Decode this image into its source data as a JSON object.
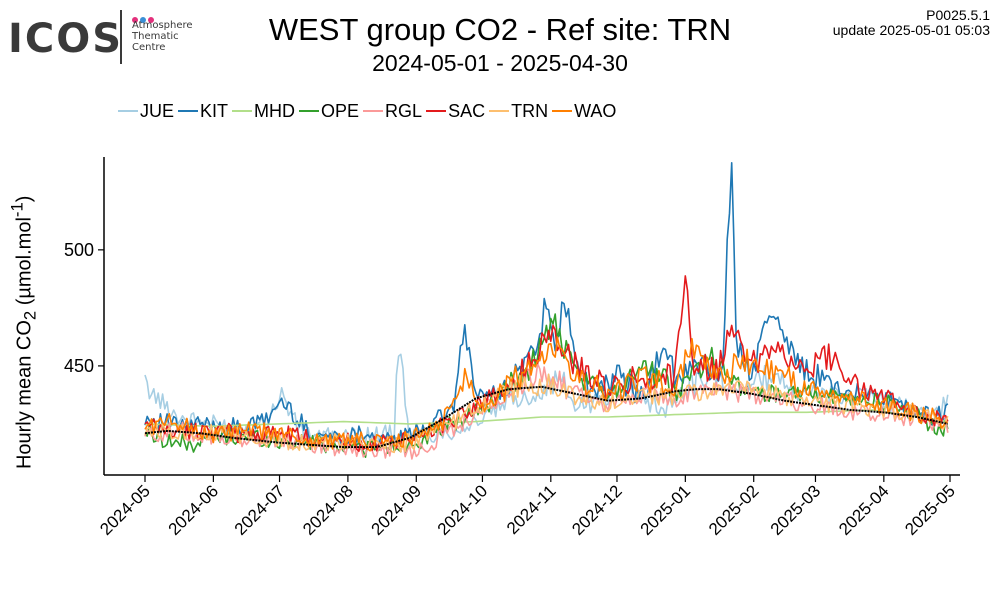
{
  "logo": {
    "word": "ICOS",
    "line1": "Atmosphere",
    "line2": "Thematic",
    "line3": "Centre",
    "dot_colors": [
      "#e4307c",
      "#3a8fd6",
      "#e4307c"
    ]
  },
  "header": {
    "title": "WEST group CO2 - Ref site: TRN",
    "subtitle": "2024-05-01 - 2025-04-30",
    "version": "P0025.5.1",
    "update": "update  2025-05-01 05:03"
  },
  "axis": {
    "ylabel_main": "Hourly mean  CO",
    "ylabel_sub": "2",
    "ylabel_unit": " (µmol.mol",
    "ylabel_sup": "-1",
    "ylabel_close": ")"
  },
  "chart_data": {
    "type": "line",
    "title": "WEST group CO2 - Ref site: TRN",
    "subtitle": "2024-05-01 - 2025-04-30",
    "xlabel": "",
    "ylabel": "Hourly mean  CO2 (µmol.mol-1)",
    "ylim": [
      403,
      540
    ],
    "yticks": [
      450,
      500
    ],
    "xlim": [
      "2024-05-01",
      "2025-04-30"
    ],
    "xticks": [
      "2024-05",
      "2024-06",
      "2024-07",
      "2024-08",
      "2024-09",
      "2024-10",
      "2024-11",
      "2024-12",
      "2025-01",
      "2025-02",
      "2025-03",
      "2025-04",
      "2025-05"
    ],
    "grid": false,
    "legend_position": "top",
    "series": [
      {
        "name": "JUE",
        "color": "#a6cee3",
        "values": [
          [
            0,
            441
          ],
          [
            15,
            428
          ],
          [
            30,
            425
          ],
          [
            45,
            423
          ],
          [
            55,
            426
          ],
          [
            62,
            438
          ],
          [
            70,
            422
          ],
          [
            85,
            419
          ],
          [
            100,
            420
          ],
          [
            113,
            421
          ],
          [
            115,
            460
          ],
          [
            120,
            419
          ],
          [
            140,
            422
          ],
          [
            155,
            428
          ],
          [
            165,
            435
          ],
          [
            175,
            437
          ],
          [
            182,
            440
          ],
          [
            188,
            445
          ],
          [
            195,
            433
          ],
          [
            205,
            434
          ],
          [
            220,
            443
          ],
          [
            227,
            435
          ],
          [
            235,
            431
          ],
          [
            245,
            440
          ],
          [
            258,
            446
          ],
          [
            265,
            445
          ],
          [
            272,
            440
          ],
          [
            285,
            447
          ],
          [
            300,
            438
          ],
          [
            315,
            437
          ],
          [
            330,
            436
          ],
          [
            345,
            432
          ],
          [
            358,
            430
          ],
          [
            364,
            434
          ]
        ]
      },
      {
        "name": "KIT",
        "color": "#1f78b4",
        "values": [
          [
            0,
            428
          ],
          [
            15,
            424
          ],
          [
            30,
            425
          ],
          [
            45,
            423
          ],
          [
            55,
            427
          ],
          [
            62,
            435
          ],
          [
            75,
            421
          ],
          [
            90,
            419
          ],
          [
            100,
            422
          ],
          [
            108,
            417
          ],
          [
            120,
            420
          ],
          [
            135,
            428
          ],
          [
            140,
            433
          ],
          [
            145,
            466
          ],
          [
            150,
            438
          ],
          [
            160,
            438
          ],
          [
            170,
            448
          ],
          [
            178,
            460
          ],
          [
            182,
            480
          ],
          [
            186,
            452
          ],
          [
            190,
            480
          ],
          [
            195,
            452
          ],
          [
            203,
            438
          ],
          [
            215,
            445
          ],
          [
            225,
            438
          ],
          [
            232,
            450
          ],
          [
            236,
            460
          ],
          [
            240,
            445
          ],
          [
            250,
            450
          ],
          [
            262,
            447
          ],
          [
            264,
            500
          ],
          [
            266,
            536
          ],
          [
            268,
            460
          ],
          [
            275,
            448
          ],
          [
            285,
            475
          ],
          [
            295,
            452
          ],
          [
            305,
            445
          ],
          [
            318,
            440
          ],
          [
            330,
            438
          ],
          [
            345,
            432
          ],
          [
            358,
            428
          ],
          [
            364,
            431
          ]
        ]
      },
      {
        "name": "MHD",
        "color": "#b2df8a",
        "values": [
          [
            0,
            425
          ],
          [
            30,
            424
          ],
          [
            60,
            425
          ],
          [
            90,
            426
          ],
          [
            120,
            425
          ],
          [
            150,
            426
          ],
          [
            180,
            428
          ],
          [
            210,
            428
          ],
          [
            240,
            429
          ],
          [
            270,
            430
          ],
          [
            300,
            430
          ],
          [
            330,
            431
          ],
          [
            364,
            426
          ]
        ]
      },
      {
        "name": "OPE",
        "color": "#33a02c",
        "values": [
          [
            0,
            422
          ],
          [
            10,
            418
          ],
          [
            20,
            416
          ],
          [
            30,
            419
          ],
          [
            45,
            420
          ],
          [
            60,
            418
          ],
          [
            75,
            417
          ],
          [
            90,
            416
          ],
          [
            105,
            414
          ],
          [
            120,
            416
          ],
          [
            140,
            425
          ],
          [
            160,
            436
          ],
          [
            175,
            450
          ],
          [
            185,
            470
          ],
          [
            195,
            445
          ],
          [
            210,
            438
          ],
          [
            225,
            450
          ],
          [
            240,
            440
          ],
          [
            258,
            455
          ],
          [
            270,
            440
          ],
          [
            285,
            438
          ],
          [
            300,
            438
          ],
          [
            315,
            436
          ],
          [
            330,
            435
          ],
          [
            345,
            432
          ],
          [
            360,
            422
          ],
          [
            364,
            424
          ]
        ]
      },
      {
        "name": "RGL",
        "color": "#fb9a99",
        "values": [
          [
            0,
            420
          ],
          [
            15,
            422
          ],
          [
            30,
            420
          ],
          [
            45,
            418
          ],
          [
            60,
            419
          ],
          [
            75,
            416
          ],
          [
            90,
            415
          ],
          [
            105,
            413
          ],
          [
            115,
            416
          ],
          [
            120,
            412
          ],
          [
            135,
            420
          ],
          [
            150,
            430
          ],
          [
            165,
            437
          ],
          [
            180,
            447
          ],
          [
            195,
            440
          ],
          [
            210,
            432
          ],
          [
            225,
            438
          ],
          [
            240,
            436
          ],
          [
            255,
            440
          ],
          [
            270,
            438
          ],
          [
            285,
            436
          ],
          [
            300,
            434
          ],
          [
            315,
            431
          ],
          [
            330,
            430
          ],
          [
            345,
            428
          ],
          [
            364,
            425
          ]
        ]
      },
      {
        "name": "SAC",
        "color": "#e31a1c",
        "values": [
          [
            0,
            424
          ],
          [
            15,
            421
          ],
          [
            30,
            423
          ],
          [
            45,
            420
          ],
          [
            60,
            421
          ],
          [
            75,
            419
          ],
          [
            90,
            418
          ],
          [
            105,
            416
          ],
          [
            120,
            418
          ],
          [
            135,
            425
          ],
          [
            150,
            433
          ],
          [
            165,
            440
          ],
          [
            175,
            453
          ],
          [
            185,
            465
          ],
          [
            195,
            450
          ],
          [
            210,
            440
          ],
          [
            225,
            446
          ],
          [
            240,
            445
          ],
          [
            245,
            492
          ],
          [
            248,
            450
          ],
          [
            260,
            448
          ],
          [
            266,
            470
          ],
          [
            275,
            450
          ],
          [
            285,
            460
          ],
          [
            300,
            448
          ],
          [
            310,
            455
          ],
          [
            325,
            440
          ],
          [
            340,
            435
          ],
          [
            355,
            428
          ],
          [
            364,
            425
          ]
        ]
      },
      {
        "name": "TRN",
        "color": "#fdbf6f",
        "values": [
          [
            0,
            423
          ],
          [
            15,
            422
          ],
          [
            30,
            421
          ],
          [
            45,
            419
          ],
          [
            60,
            418
          ],
          [
            75,
            417
          ],
          [
            90,
            417
          ],
          [
            105,
            416
          ],
          [
            120,
            417
          ],
          [
            135,
            423
          ],
          [
            150,
            432
          ],
          [
            165,
            440
          ],
          [
            180,
            442
          ],
          [
            195,
            437
          ],
          [
            210,
            434
          ],
          [
            225,
            437
          ],
          [
            240,
            437
          ],
          [
            255,
            439
          ],
          [
            270,
            440
          ],
          [
            285,
            438
          ],
          [
            300,
            435
          ],
          [
            315,
            433
          ],
          [
            330,
            432
          ],
          [
            345,
            430
          ],
          [
            364,
            426
          ]
        ]
      },
      {
        "name": "WAO",
        "color": "#ff7f00",
        "values": [
          [
            0,
            424
          ],
          [
            15,
            426
          ],
          [
            30,
            420
          ],
          [
            45,
            422
          ],
          [
            60,
            421
          ],
          [
            75,
            418
          ],
          [
            90,
            418
          ],
          [
            105,
            417
          ],
          [
            120,
            418
          ],
          [
            135,
            426
          ],
          [
            145,
            445
          ],
          [
            155,
            432
          ],
          [
            165,
            443
          ],
          [
            175,
            448
          ],
          [
            185,
            460
          ],
          [
            195,
            445
          ],
          [
            210,
            438
          ],
          [
            225,
            444
          ],
          [
            240,
            442
          ],
          [
            250,
            460
          ],
          [
            260,
            445
          ],
          [
            270,
            452
          ],
          [
            285,
            448
          ],
          [
            300,
            440
          ],
          [
            315,
            437
          ],
          [
            330,
            434
          ],
          [
            345,
            431
          ],
          [
            364,
            426
          ]
        ]
      }
    ],
    "reference_curve": {
      "name": "",
      "color": "#000000",
      "values": [
        [
          0,
          421
        ],
        [
          10,
          422
        ],
        [
          25,
          421
        ],
        [
          40,
          419
        ],
        [
          60,
          417
        ],
        [
          75,
          416
        ],
        [
          90,
          415
        ],
        [
          105,
          415
        ],
        [
          120,
          419
        ],
        [
          135,
          427
        ],
        [
          150,
          436
        ],
        [
          165,
          440
        ],
        [
          180,
          441
        ],
        [
          195,
          438
        ],
        [
          210,
          435
        ],
        [
          225,
          436
        ],
        [
          240,
          439
        ],
        [
          250,
          440
        ],
        [
          260,
          440
        ],
        [
          275,
          438
        ],
        [
          290,
          435
        ],
        [
          305,
          433
        ],
        [
          320,
          431
        ],
        [
          335,
          430
        ],
        [
          350,
          428
        ],
        [
          364,
          425
        ]
      ]
    }
  }
}
